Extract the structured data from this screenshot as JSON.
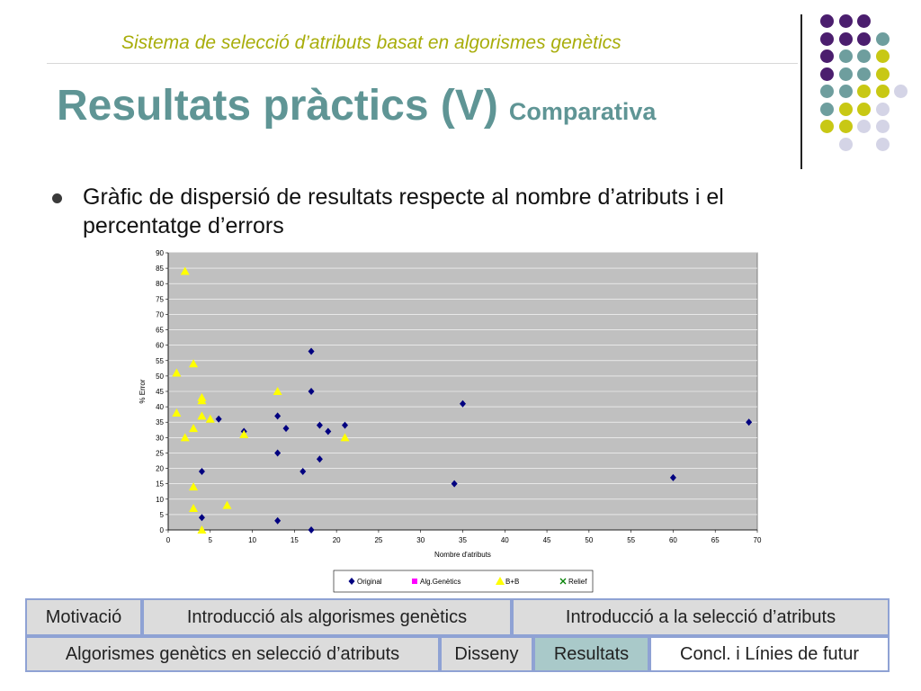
{
  "header": {
    "subtitle": "Sistema de selecció d’atributs basat en algorismes genètics",
    "title": "Resultats pràctics (V)",
    "title_suffix": "Comparativa"
  },
  "decor_colors": {
    "purple": "#4b1e6e",
    "teal": "#6e9e9e",
    "olive": "#c8c814",
    "lavender": "#d4d4e6"
  },
  "bullet": {
    "text": "Gràfic de dispersió de resultats respecte al nombre d’atributs i el percentatge d’errors"
  },
  "chart_data": {
    "type": "scatter",
    "xlabel": "Nombre d'atributs",
    "ylabel": "% Error",
    "xlim": [
      0,
      70
    ],
    "ylim": [
      0,
      90
    ],
    "xticks": [
      0,
      5,
      10,
      15,
      20,
      25,
      30,
      35,
      40,
      45,
      50,
      55,
      60,
      65,
      70
    ],
    "yticks": [
      0,
      5,
      10,
      15,
      20,
      25,
      30,
      35,
      40,
      45,
      50,
      55,
      60,
      65,
      70,
      75,
      80,
      85,
      90
    ],
    "grid": true,
    "legend_position": "bottom",
    "series": [
      {
        "name": "Original",
        "marker": "diamond",
        "color": "#000080",
        "points": [
          [
            4,
            19
          ],
          [
            4,
            4
          ],
          [
            6,
            36
          ],
          [
            9,
            32
          ],
          [
            13,
            37
          ],
          [
            13,
            25
          ],
          [
            13,
            3
          ],
          [
            14,
            33
          ],
          [
            16,
            19
          ],
          [
            17,
            58
          ],
          [
            17,
            45
          ],
          [
            17,
            0
          ],
          [
            18,
            34
          ],
          [
            18,
            23
          ],
          [
            19,
            32
          ],
          [
            21,
            34
          ],
          [
            34,
            15
          ],
          [
            35,
            41
          ],
          [
            60,
            17
          ],
          [
            69,
            35
          ]
        ]
      },
      {
        "name": "Alg.Genètics",
        "marker": "square",
        "color": "#ff00ff",
        "points": []
      },
      {
        "name": "B+B",
        "marker": "triangle",
        "color": "#ffff00",
        "points": [
          [
            2,
            84
          ],
          [
            1,
            51
          ],
          [
            3,
            54
          ],
          [
            1,
            38
          ],
          [
            2,
            30
          ],
          [
            3,
            33
          ],
          [
            4,
            43
          ],
          [
            4,
            42
          ],
          [
            4,
            37
          ],
          [
            5,
            36
          ],
          [
            3,
            14
          ],
          [
            3,
            7
          ],
          [
            4,
            0
          ],
          [
            7,
            8
          ],
          [
            9,
            31
          ],
          [
            13,
            45
          ],
          [
            21,
            30
          ]
        ]
      },
      {
        "name": "Relief",
        "marker": "x",
        "color": "#008000",
        "points": []
      }
    ]
  },
  "nav": {
    "row1": [
      "Motivació",
      "Introducció als algorismes genètics",
      "Introducció a la selecció d’atributs"
    ],
    "row2": [
      "Algorismes genètics en selecció d’atributs",
      "Disseny",
      "Resultats",
      "Concl. i Línies de futur"
    ]
  }
}
